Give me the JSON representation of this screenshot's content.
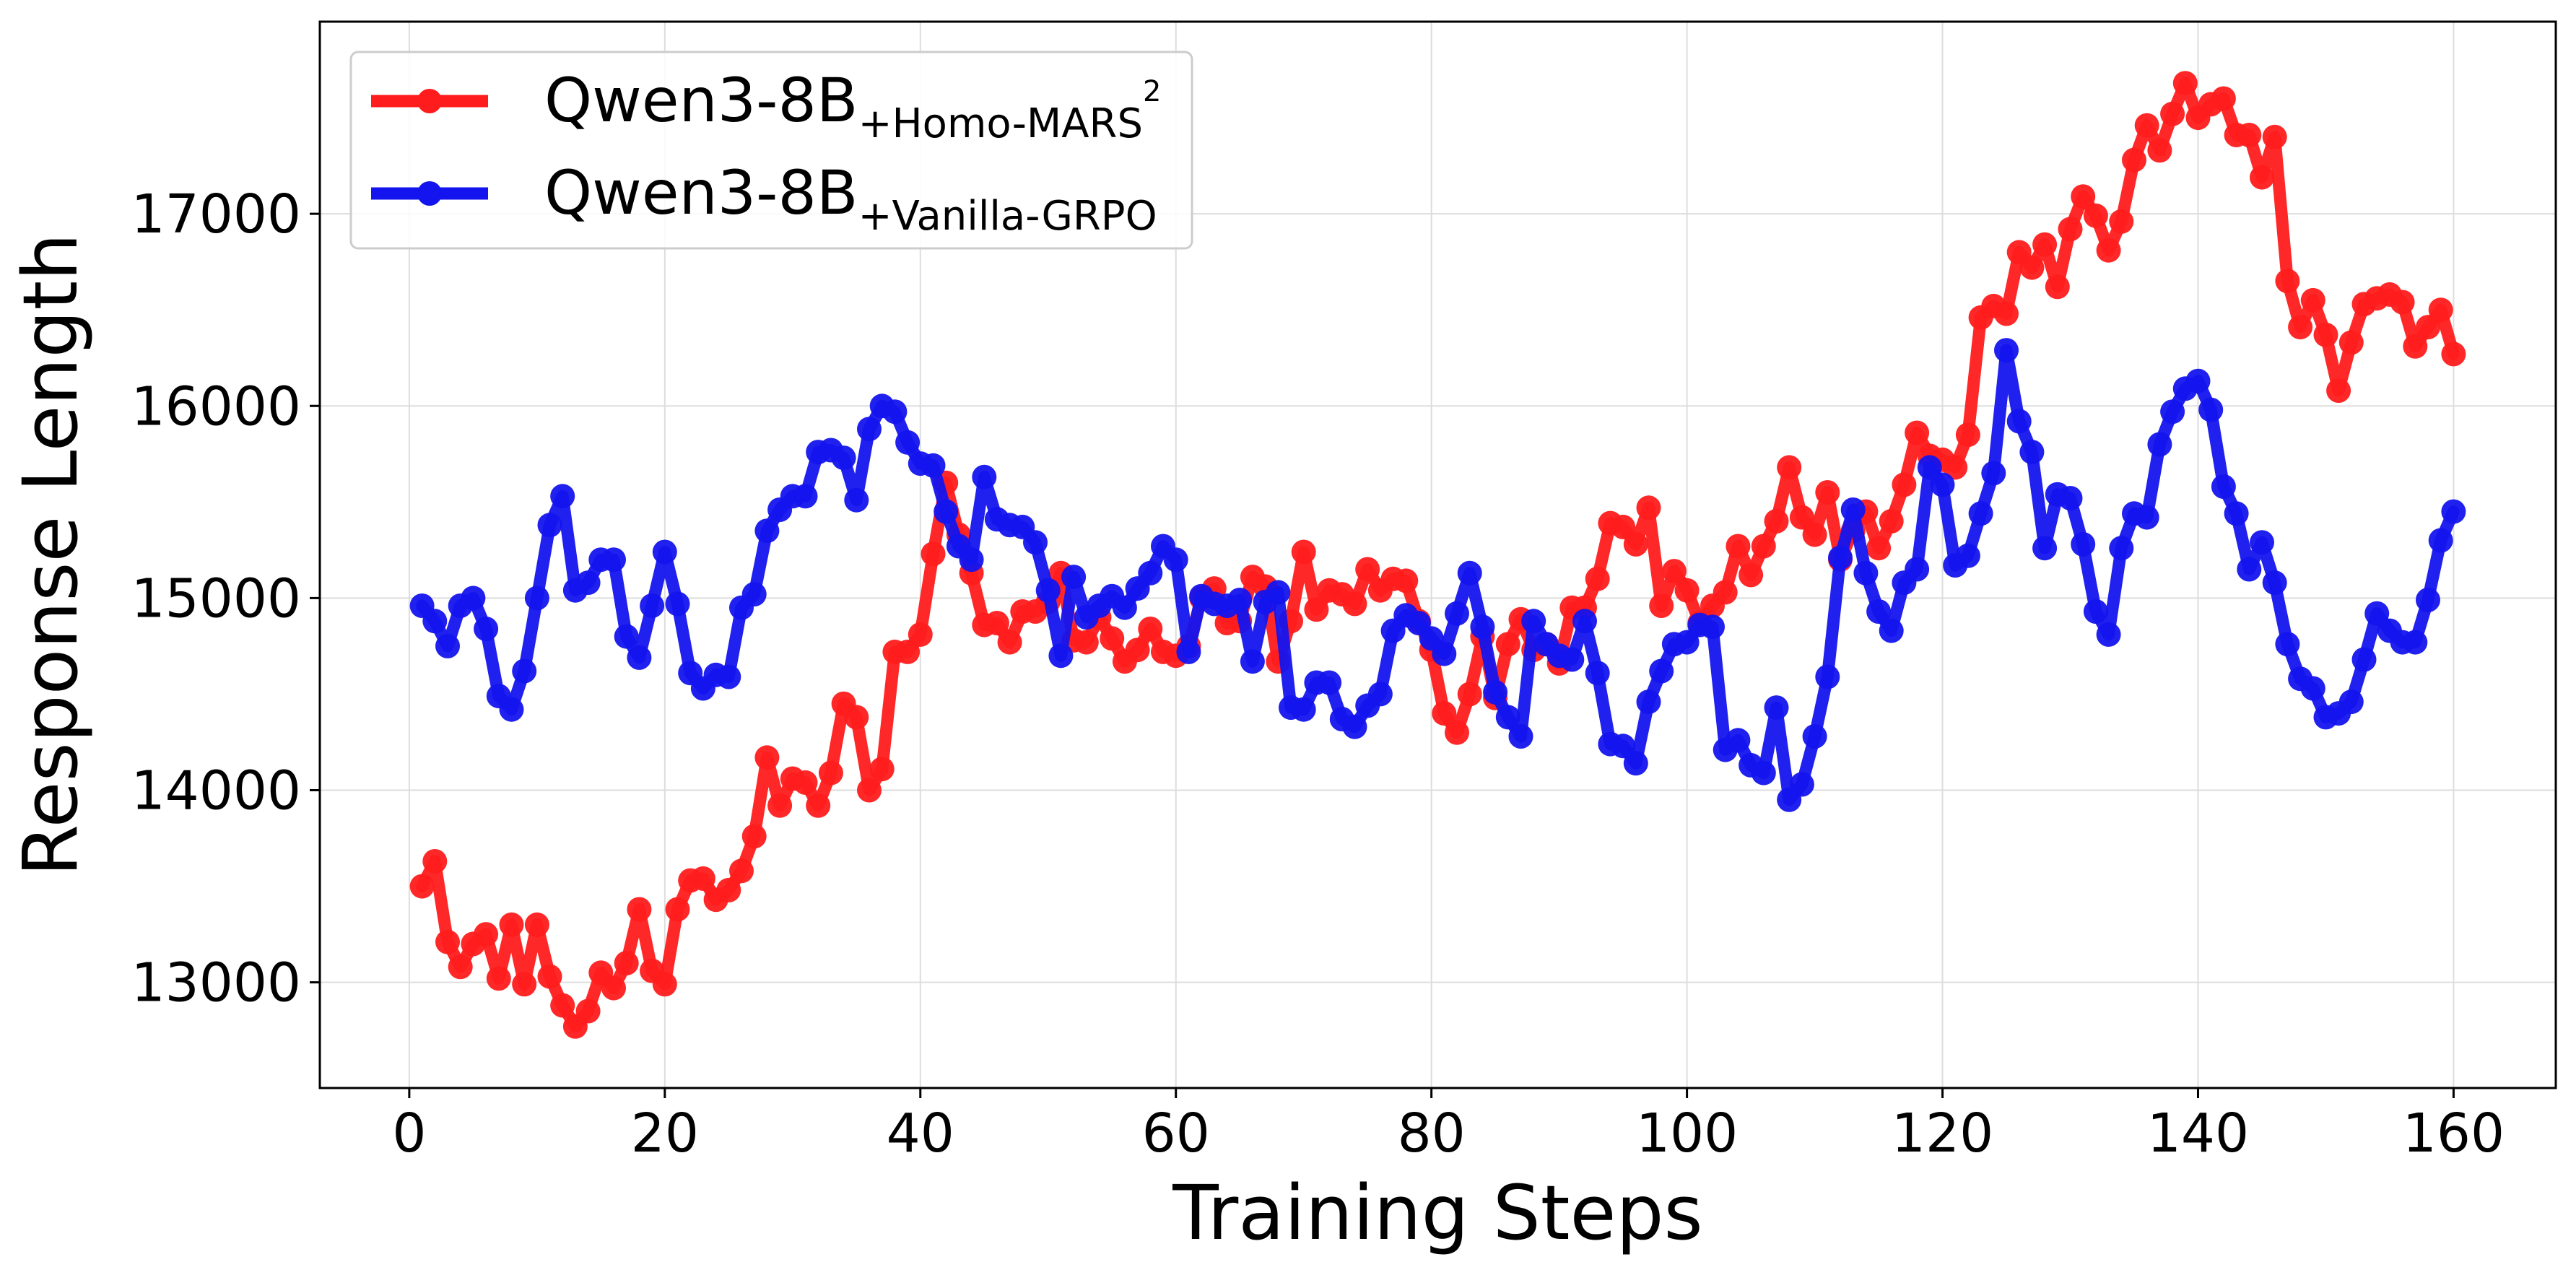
{
  "chart_data": {
    "type": "line",
    "title": "",
    "xlabel": "Training Steps",
    "ylabel": "Response Length",
    "xlim": [
      -7,
      168
    ],
    "ylim": [
      12450,
      18000
    ],
    "xticks": [
      0,
      20,
      40,
      60,
      80,
      100,
      120,
      140,
      160
    ],
    "yticks": [
      13000,
      14000,
      15000,
      16000,
      17000
    ],
    "grid": true,
    "legend_position": "top-left",
    "x": [
      1,
      2,
      3,
      4,
      5,
      6,
      7,
      8,
      9,
      10,
      11,
      12,
      13,
      14,
      15,
      16,
      17,
      18,
      19,
      20,
      21,
      22,
      23,
      24,
      25,
      26,
      27,
      28,
      29,
      30,
      31,
      32,
      33,
      34,
      35,
      36,
      37,
      38,
      39,
      40,
      41,
      42,
      43,
      44,
      45,
      46,
      47,
      48,
      49,
      50,
      51,
      52,
      53,
      54,
      55,
      56,
      57,
      58,
      59,
      60,
      61,
      62,
      63,
      64,
      65,
      66,
      67,
      68,
      69,
      70,
      71,
      72,
      73,
      74,
      75,
      76,
      77,
      78,
      79,
      80,
      81,
      82,
      83,
      84,
      85,
      86,
      87,
      88,
      89,
      90,
      91,
      92,
      93,
      94,
      95,
      96,
      97,
      98,
      99,
      100,
      101,
      102,
      103,
      104,
      105,
      106,
      107,
      108,
      109,
      110,
      111,
      112,
      113,
      114,
      115,
      116,
      117,
      118,
      119,
      120,
      121,
      122,
      123,
      124,
      125,
      126,
      127,
      128,
      129,
      130,
      131,
      132,
      133,
      134,
      135,
      136,
      137,
      138,
      139,
      140,
      141,
      142,
      143,
      144,
      145,
      146,
      147,
      148,
      149,
      150,
      151,
      152,
      153,
      154,
      155,
      156,
      157,
      158,
      159,
      160
    ],
    "series": [
      {
        "name": "Qwen3-8B+Homo-MARS2",
        "label_main": "Qwen3-8B",
        "label_sub": "+Homo-MARS",
        "label_sup": "2",
        "color": "#ff1c1c",
        "values": [
          13500,
          13630,
          13210,
          13080,
          13200,
          13250,
          13020,
          13300,
          12990,
          13300,
          13030,
          12880,
          12770,
          12850,
          13050,
          12970,
          13100,
          13380,
          13060,
          12990,
          13380,
          13530,
          13540,
          13430,
          13480,
          13580,
          13760,
          14170,
          13920,
          14060,
          14040,
          13920,
          14090,
          14450,
          14380,
          14000,
          14110,
          14720,
          14720,
          14810,
          15230,
          15600,
          15330,
          15130,
          14860,
          14870,
          14770,
          14930,
          14930,
          14980,
          15130,
          14780,
          14770,
          14900,
          14790,
          14670,
          14730,
          14840,
          14720,
          14700,
          14750,
          15000,
          15050,
          14870,
          14880,
          15110,
          15060,
          14670,
          14880,
          15240,
          14940,
          15040,
          15020,
          14970,
          15150,
          15040,
          15100,
          15090,
          14880,
          14730,
          14400,
          14300,
          14500,
          14800,
          14480,
          14760,
          14890,
          14730,
          14760,
          14660,
          14950,
          14950,
          15100,
          15390,
          15370,
          15280,
          15470,
          14960,
          15140,
          15040,
          14870,
          14960,
          15030,
          15270,
          15120,
          15270,
          15400,
          15680,
          15420,
          15330,
          15550,
          15200,
          15350,
          15450,
          15260,
          15400,
          15590,
          15860,
          15740,
          15720,
          15680,
          15850,
          16460,
          16520,
          16480,
          16800,
          16720,
          16840,
          16620,
          16920,
          17090,
          16990,
          16810,
          16960,
          17280,
          17460,
          17330,
          17520,
          17680,
          17500,
          17570,
          17600,
          17410,
          17410,
          17190,
          17400,
          16650,
          16410,
          16550,
          16370,
          16080,
          16330,
          16530,
          16560,
          16580,
          16540,
          16310,
          16410,
          16500,
          16270
        ]
      },
      {
        "name": "Qwen3-8B+Vanilla-GRPO",
        "label_main": "Qwen3-8B",
        "label_sub": "+Vanilla-GRPO",
        "label_sup": "",
        "color": "#1414ee",
        "values": [
          14960,
          14880,
          14750,
          14960,
          15000,
          14840,
          14490,
          14420,
          14620,
          15000,
          15380,
          15530,
          15040,
          15080,
          15200,
          15200,
          14800,
          14690,
          14960,
          15240,
          14970,
          14610,
          14530,
          14600,
          14590,
          14950,
          15020,
          15350,
          15460,
          15530,
          15530,
          15760,
          15770,
          15730,
          15510,
          15880,
          16000,
          15970,
          15810,
          15700,
          15690,
          15450,
          15270,
          15200,
          15630,
          15410,
          15380,
          15370,
          15290,
          15040,
          14700,
          15110,
          14900,
          14960,
          15010,
          14950,
          15050,
          15130,
          15270,
          15200,
          14720,
          15010,
          14970,
          14960,
          14990,
          14670,
          14980,
          15030,
          14430,
          14420,
          14560,
          14560,
          14370,
          14330,
          14440,
          14500,
          14830,
          14910,
          14870,
          14790,
          14710,
          14920,
          15130,
          14850,
          14510,
          14380,
          14280,
          14880,
          14760,
          14700,
          14680,
          14880,
          14610,
          14240,
          14230,
          14140,
          14460,
          14620,
          14760,
          14770,
          14860,
          14850,
          14210,
          14260,
          14130,
          14090,
          14430,
          13950,
          14030,
          14280,
          14590,
          15210,
          15460,
          15130,
          14930,
          14830,
          15080,
          15150,
          15680,
          15590,
          15170,
          15220,
          15440,
          15650,
          16290,
          15920,
          15760,
          15260,
          15540,
          15520,
          15280,
          14930,
          14810,
          15260,
          15440,
          15420,
          15800,
          15970,
          16090,
          16130,
          15980,
          15580,
          15440,
          15150,
          15290,
          15080,
          14760,
          14580,
          14530,
          14380,
          14400,
          14460,
          14680,
          14920,
          14830,
          14770,
          14770,
          14990,
          15300,
          15450
        ]
      }
    ]
  }
}
